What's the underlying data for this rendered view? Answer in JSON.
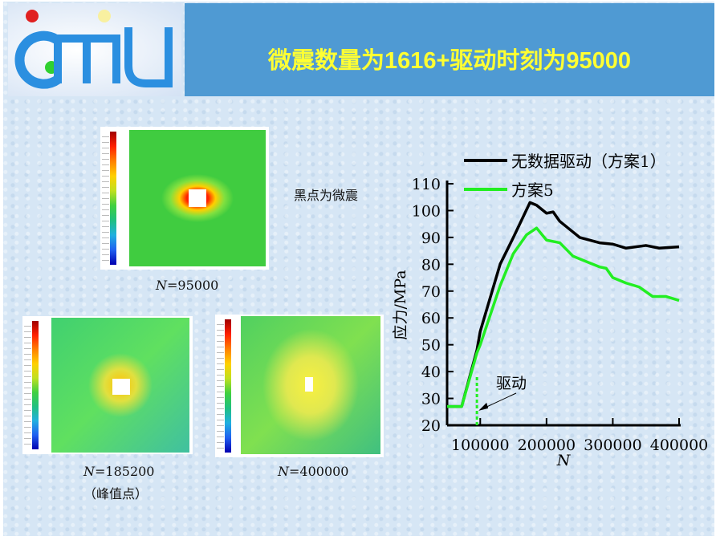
{
  "header": {
    "title": "微震数量为1616+驱动时刻为95000",
    "logo_text": "CMTU"
  },
  "images": [
    {
      "caption_var": "N",
      "caption_value": "=95000",
      "note": "黑点为微震"
    },
    {
      "caption_var": "N",
      "caption_value": "=185200",
      "sub": "（峰值点）"
    },
    {
      "caption_var": "N",
      "caption_value": "=400000"
    }
  ],
  "chart_data": {
    "type": "line",
    "xlabel": "N",
    "ylabel": "应力/MPa",
    "xlim": [
      50000,
      400000
    ],
    "ylim": [
      20,
      110
    ],
    "xticks": [
      "100000",
      "200000",
      "300000",
      "400000"
    ],
    "xtick_values": [
      100000,
      200000,
      300000,
      400000
    ],
    "yticks": [
      "20",
      "30",
      "40",
      "50",
      "60",
      "70",
      "80",
      "90",
      "100",
      "110"
    ],
    "legend_position": "top",
    "series": [
      {
        "name": "无数据驱动（方案1）",
        "color": "#000000",
        "x": [
          50000,
          72000,
          95000,
          100000,
          130000,
          150000,
          175000,
          185000,
          200000,
          210000,
          220000,
          240000,
          250000,
          280000,
          300000,
          320000,
          350000,
          370000,
          400000
        ],
        "y": [
          27,
          27,
          48,
          55,
          80,
          90,
          103,
          102,
          99,
          99.5,
          96,
          92,
          90,
          88,
          87.5,
          86,
          87,
          86,
          86.5
        ]
      },
      {
        "name": "方案5",
        "color": "#22ee22",
        "x": [
          50000,
          72000,
          95000,
          100000,
          130000,
          150000,
          170000,
          185000,
          200000,
          220000,
          240000,
          260000,
          280000,
          290000,
          300000,
          320000,
          340000,
          360000,
          380000,
          400000
        ],
        "y": [
          27,
          27,
          47,
          50,
          72,
          84,
          91,
          93.5,
          89,
          88,
          83,
          81,
          79,
          78.5,
          75,
          73,
          71.5,
          68,
          68,
          66.5
        ]
      }
    ],
    "annotation": {
      "text": "驱动",
      "x": 95000,
      "y_range": [
        20,
        38
      ]
    }
  }
}
